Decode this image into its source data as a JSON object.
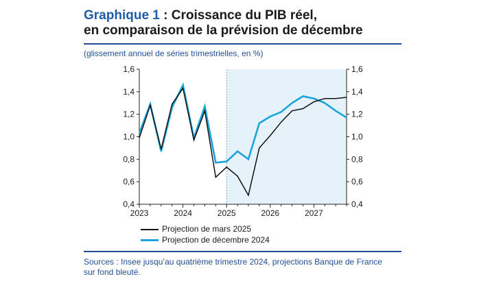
{
  "title": {
    "prefix": "Graphique 1",
    "line1_rest": " : Croissance du PIB réel,",
    "line2": "en comparaison de la prévision de décembre"
  },
  "subtitle": "(glissement annuel de séries trimestrielles, en %)",
  "footer": {
    "line1": "Sources : Insee jusqu’au quatrième trimestre 2024, projections Banque de France",
    "line2": "sur fond bleuté."
  },
  "colors": {
    "series_mars": "#111111",
    "series_decembre": "#1aa3dd",
    "projection_shade": "#e5f2fa",
    "title_accent": "#1f5ba8",
    "rule": "#1f4e96"
  },
  "chart_data": {
    "type": "line",
    "x_ticks": [
      "2023",
      "2024",
      "2025",
      "2026",
      "2027"
    ],
    "y_ticks": [
      "0,4",
      "0,6",
      "0,8",
      "1,0",
      "1,2",
      "1,4",
      "1,6"
    ],
    "ylim": [
      0.4,
      1.6
    ],
    "grid": false,
    "projection_from": "2025T1",
    "x": [
      "2023T1",
      "2023T2",
      "2023T3",
      "2023T4",
      "2024T1",
      "2024T2",
      "2024T3",
      "2024T4",
      "2025T1",
      "2025T2",
      "2025T3",
      "2025T4",
      "2026T1",
      "2026T2",
      "2026T3",
      "2026T4",
      "2027T1",
      "2027T2",
      "2027T3",
      "2027T4"
    ],
    "series": [
      {
        "name": "Projection de mars 2025",
        "values": [
          0.99,
          1.28,
          0.89,
          1.29,
          1.43,
          0.97,
          1.23,
          0.64,
          0.73,
          0.65,
          0.48,
          0.9,
          1.01,
          1.13,
          1.23,
          1.25,
          1.31,
          1.34,
          1.34,
          1.35
        ]
      },
      {
        "name": "Projection de décembre 2024",
        "values": [
          1.03,
          1.29,
          0.87,
          1.26,
          1.46,
          0.99,
          1.27,
          0.77,
          0.78,
          0.87,
          0.8,
          1.12,
          1.18,
          1.22,
          1.3,
          1.36,
          1.34,
          1.3,
          1.23,
          1.17
        ]
      }
    ]
  }
}
